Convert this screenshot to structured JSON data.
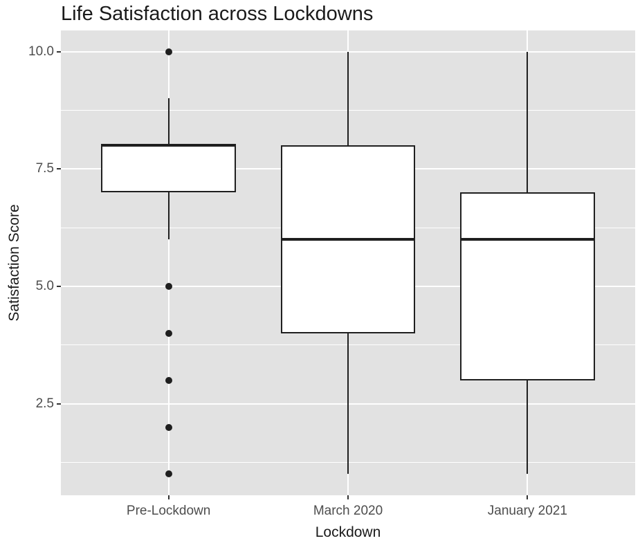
{
  "chart_data": {
    "type": "boxplot",
    "title": "Life Satisfaction across Lockdowns",
    "xlabel": "Lockdown",
    "ylabel": "Satisfaction Score",
    "categories": [
      "Pre-Lockdown",
      "March 2020",
      "January 2021"
    ],
    "ylim": [
      0.55,
      10.45
    ],
    "y_major_ticks": [
      10.0,
      7.5,
      5.0,
      2.5
    ],
    "y_tick_labels": [
      "10.0",
      "7.5",
      "5.0",
      "2.5"
    ],
    "y_minor_gridlines": [
      8.75,
      6.25,
      3.75,
      1.25
    ],
    "grid": "white major and minor horizontal gridlines plus vertical category gridlines on gray panel",
    "legend": "none",
    "series": [
      {
        "category": "Pre-Lockdown",
        "whisker_low": 6,
        "q1": 7,
        "median": 8,
        "q3": 8,
        "whisker_high": 9,
        "outliers": [
          10,
          5,
          4,
          3,
          2,
          1
        ]
      },
      {
        "category": "March 2020",
        "whisker_low": 1,
        "q1": 4,
        "median": 6,
        "q3": 8,
        "whisker_high": 10,
        "outliers": []
      },
      {
        "category": "January 2021",
        "whisker_low": 1,
        "q1": 3,
        "median": 6,
        "q3": 7,
        "whisker_high": 10,
        "outliers": []
      }
    ]
  },
  "colors": {
    "panel_background": "#e2e2e2",
    "gridline": "#ffffff",
    "box_fill": "#ffffff",
    "box_border": "#1f1f1f",
    "outlier": "#1f1f1f",
    "title_text": "#1a1a1a",
    "axis_title_text": "#1a1a1a",
    "tick_label_text": "#4d4d4d",
    "tick_mark": "#333333"
  }
}
